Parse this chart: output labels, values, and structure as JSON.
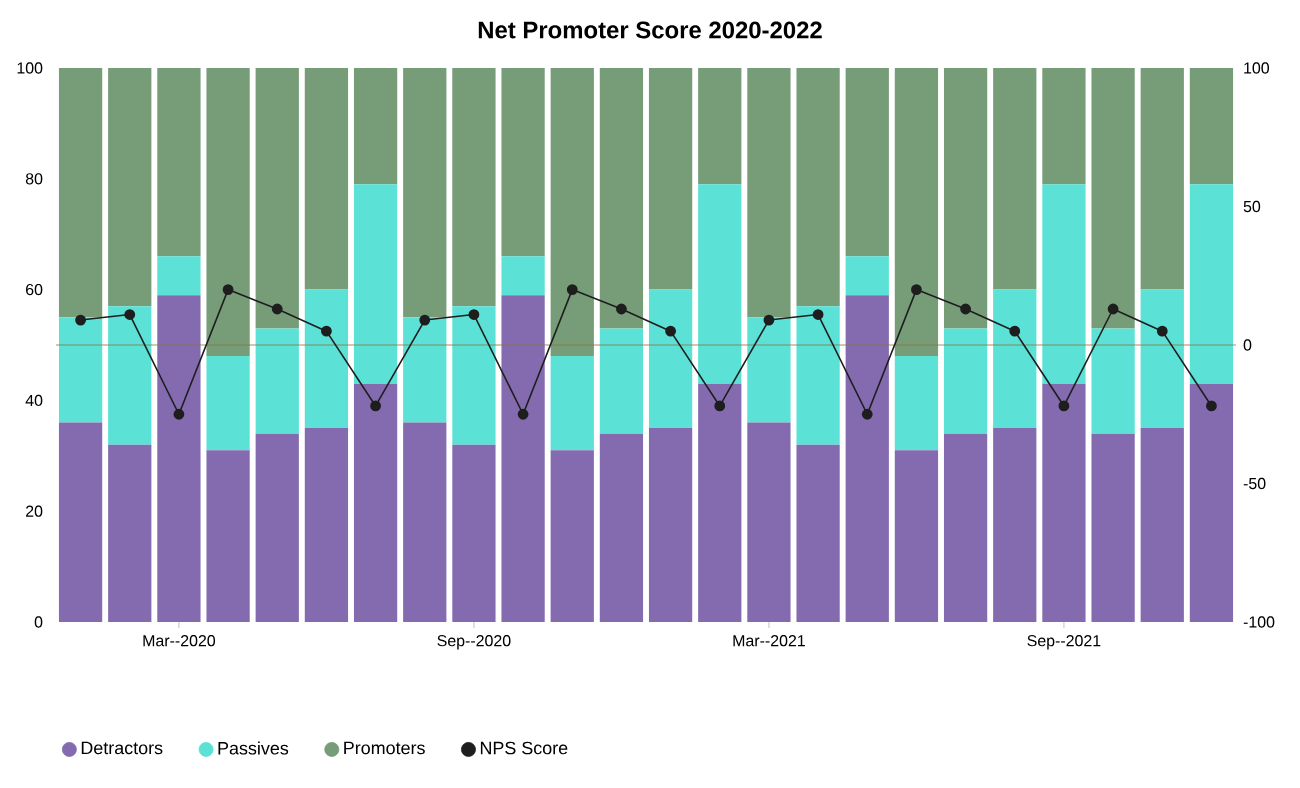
{
  "chart_data": {
    "type": "bar",
    "title": "Net Promoter Score 2020-2022",
    "categories": [
      null,
      null,
      "Mar--2020",
      null,
      null,
      null,
      null,
      null,
      "Sep--2020",
      null,
      null,
      null,
      null,
      null,
      "Mar--2021",
      null,
      null,
      null,
      null,
      null,
      "Sep--2021",
      null,
      null,
      null
    ],
    "stacked": true,
    "series": [
      {
        "name": "Detractors",
        "color": "#846bb0",
        "values": [
          36,
          32,
          59,
          31,
          34,
          35,
          43,
          36,
          32,
          59,
          31,
          34,
          35,
          43,
          36,
          32,
          59,
          31,
          34,
          35,
          43,
          34,
          35,
          43
        ]
      },
      {
        "name": "Passives",
        "color": "#5ce1d6",
        "values": [
          19,
          25,
          7,
          17,
          19,
          25,
          36,
          19,
          25,
          7,
          17,
          19,
          25,
          36,
          19,
          25,
          7,
          17,
          19,
          25,
          36,
          19,
          25,
          36
        ]
      },
      {
        "name": "Promoters",
        "color": "#769c78",
        "values": [
          45,
          43,
          34,
          52,
          47,
          40,
          21,
          45,
          43,
          34,
          52,
          47,
          40,
          21,
          45,
          43,
          34,
          52,
          47,
          40,
          21,
          47,
          40,
          21
        ]
      },
      {
        "name": "NPS Score",
        "type": "line",
        "axis": "y2",
        "marker": "circle",
        "color": "#1e1e1e",
        "values": [
          9,
          11,
          -25,
          20,
          13,
          5,
          -22,
          9,
          11,
          -25,
          20,
          13,
          5,
          -22,
          9,
          11,
          -25,
          20,
          13,
          5,
          -22,
          13,
          5,
          -22
        ]
      }
    ],
    "ylim": [
      0,
      100
    ],
    "yticks": [
      0,
      20,
      40,
      60,
      80,
      100
    ],
    "y2lim": [
      -100,
      100
    ],
    "y2ticks": [
      -100,
      -50,
      0,
      50,
      100
    ],
    "ref_lines": [
      {
        "axis": "y2",
        "value": 0,
        "color": "#8a7440"
      }
    ],
    "legend": "bottom",
    "grid": false
  }
}
